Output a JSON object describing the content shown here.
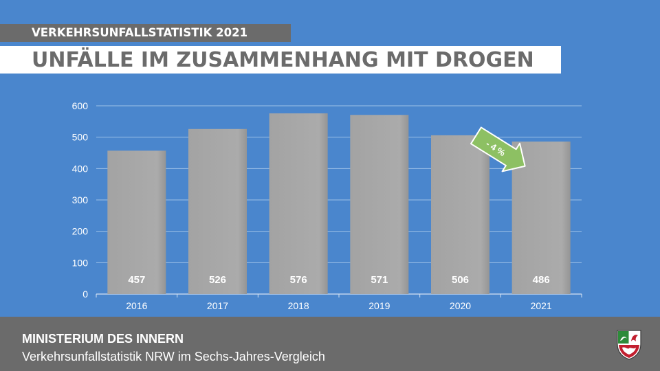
{
  "header": {
    "supertitle": "VERKEHRSUNFALLSTATISTIK 2021",
    "title": "UNFÄLLE IM ZUSAMMENHANG MIT DROGEN"
  },
  "chart_data": {
    "type": "bar",
    "categories": [
      "2016",
      "2017",
      "2018",
      "2019",
      "2020",
      "2021"
    ],
    "values": [
      457,
      526,
      576,
      571,
      506,
      486
    ],
    "ylim": [
      0,
      600
    ],
    "yticks": [
      0,
      100,
      200,
      300,
      400,
      500,
      600
    ],
    "grid": true,
    "annotation": "- 4 %",
    "colors": {
      "background": "#4a86cd",
      "bar": "#a9a9a9",
      "annotation_arrow": "#8dc063",
      "grid": "#9fc1e8"
    }
  },
  "footer": {
    "ministry": "MINISTERIUM DES INNERN",
    "subtitle": "Verkehrsunfallstatistik NRW im Sechs-Jahres-Vergleich",
    "crest_icon": "nrw-coat-of-arms-icon"
  }
}
